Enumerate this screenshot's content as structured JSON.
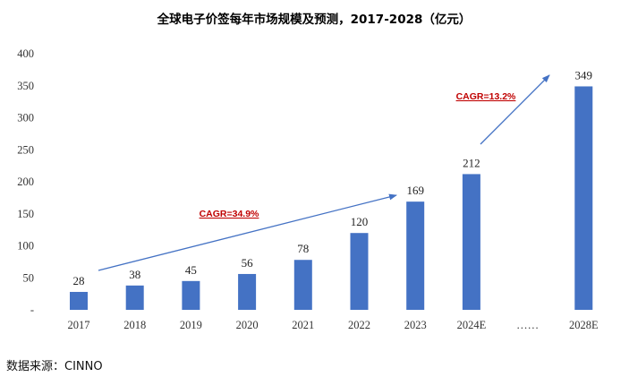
{
  "chart_data": {
    "type": "bar",
    "title": "全球电子价签每年市场规模及预测，2017-2028（亿元）",
    "categories": [
      "2017",
      "2018",
      "2019",
      "2020",
      "2021",
      "2022",
      "2023",
      "2024E",
      "……",
      "2028E"
    ],
    "values": [
      28,
      38,
      45,
      56,
      78,
      120,
      169,
      212,
      null,
      349
    ],
    "data_labels": [
      "28",
      "38",
      "45",
      "56",
      "78",
      "120",
      "169",
      "212",
      "",
      "349"
    ],
    "ylim": [
      0,
      400
    ],
    "yticks": [
      "-",
      "50",
      "100",
      "150",
      "200",
      "250",
      "300",
      "350",
      "400"
    ],
    "xlabel": "",
    "ylabel": "",
    "grid": false,
    "bar_color": "#4472c4",
    "annotations": [
      {
        "text": "CAGR=34.9%",
        "color": "#c00000",
        "from_category": "2017",
        "to_category": "2023"
      },
      {
        "text": "CAGR=13.2%",
        "color": "#c00000",
        "from_category": "2024E",
        "to_category": "2028E"
      }
    ],
    "arrow_color": "#4472c4"
  },
  "source": "数据来源：CINNO"
}
